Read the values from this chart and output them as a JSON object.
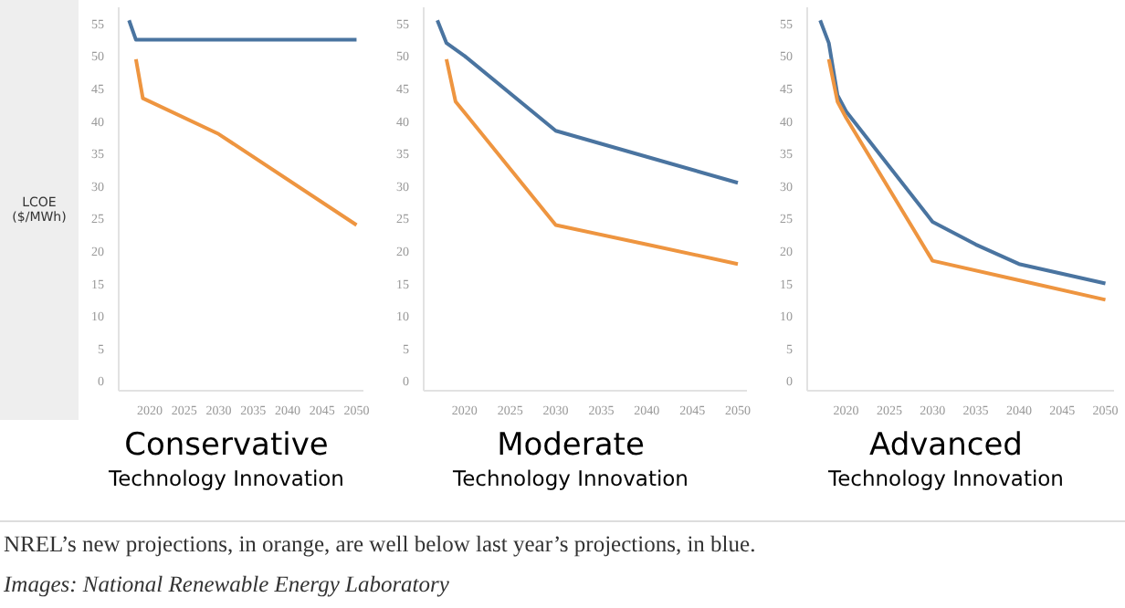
{
  "chart_data": [
    {
      "type": "line",
      "title": "Conservative",
      "subtitle": "Technology Innovation",
      "ylabel": "LCOE ($/MWh)",
      "xlim": [
        2015.5,
        2051
      ],
      "xticks": [
        2020,
        2025,
        2030,
        2035,
        2040,
        2045,
        2050
      ],
      "ylim": [
        -1.5,
        57.5
      ],
      "yticks": [
        0,
        5,
        10,
        15,
        20,
        25,
        30,
        35,
        40,
        45,
        50,
        55
      ],
      "grid": false,
      "marker": "none",
      "series": [
        {
          "color": "#4a74a0",
          "x": [
            2017,
            2018,
            2050
          ],
          "values": [
            55.5,
            52.5,
            52.5
          ]
        },
        {
          "color": "#ee9540",
          "x": [
            2018,
            2019,
            2030,
            2050
          ],
          "values": [
            49.5,
            43.5,
            38,
            24
          ]
        }
      ]
    },
    {
      "type": "line",
      "title": "Moderate",
      "subtitle": "Technology Innovation",
      "xlim": [
        2015.5,
        2051
      ],
      "xticks": [
        2020,
        2025,
        2030,
        2035,
        2040,
        2045,
        2050
      ],
      "ylim": [
        -1.5,
        57.5
      ],
      "yticks": [
        0,
        5,
        10,
        15,
        20,
        25,
        30,
        35,
        40,
        45,
        50,
        55
      ],
      "grid": false,
      "marker": "none",
      "series": [
        {
          "color": "#4a74a0",
          "x": [
            2017,
            2018,
            2020,
            2030,
            2040,
            2050
          ],
          "values": [
            55.5,
            52,
            50,
            38.5,
            34.5,
            30.5
          ]
        },
        {
          "color": "#ee9540",
          "x": [
            2018,
            2019,
            2030,
            2040,
            2050
          ],
          "values": [
            49.5,
            43,
            24,
            21,
            18
          ]
        }
      ]
    },
    {
      "type": "line",
      "title": "Advanced",
      "subtitle": "Technology Innovation",
      "xlim": [
        2015.5,
        2051
      ],
      "xticks": [
        2020,
        2025,
        2030,
        2035,
        2040,
        2045,
        2050
      ],
      "ylim": [
        -1.5,
        57.5
      ],
      "yticks": [
        0,
        5,
        10,
        15,
        20,
        25,
        30,
        35,
        40,
        45,
        50,
        55
      ],
      "grid": false,
      "marker": "none",
      "annotations": [
        "NREL’s new projections, in orange, are well below last year’s projections, in blue.",
        "Images: National Renewable Energy Laboratory"
      ],
      "series": [
        {
          "color": "#4a74a0",
          "x": [
            2017,
            2018,
            2019,
            2020,
            2030,
            2035,
            2040,
            2050
          ],
          "values": [
            55.5,
            52,
            44,
            41.5,
            24.5,
            21,
            18,
            15
          ]
        },
        {
          "color": "#ee9540",
          "x": [
            2018,
            2019,
            2020,
            2030,
            2040,
            2050
          ],
          "values": [
            49.5,
            43,
            40.5,
            18.5,
            15.5,
            12.5
          ]
        }
      ]
    }
  ]
}
